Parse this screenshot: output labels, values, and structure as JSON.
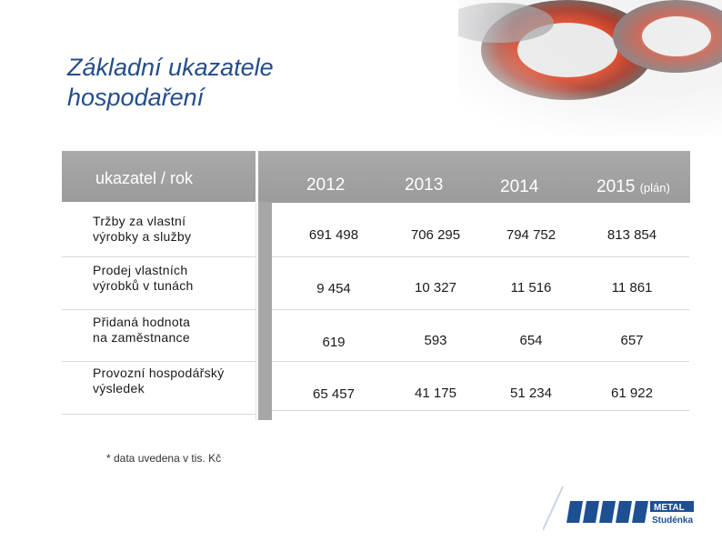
{
  "title": {
    "line1": "Základní ukazatele",
    "line2": "hospodaření"
  },
  "table": {
    "header_label": "ukazatel / rok",
    "years": [
      {
        "year": "2012",
        "suffix": ""
      },
      {
        "year": "2013",
        "suffix": ""
      },
      {
        "year": "2014",
        "suffix": ""
      },
      {
        "year": "2015",
        "suffix": "(plán)"
      }
    ],
    "rows": [
      {
        "label_1": "Tržby za vlastní",
        "label_2": "výrobky a služby",
        "values": [
          "691 498",
          "706 295",
          "794 752",
          "813 854"
        ]
      },
      {
        "label_1": "Prodej vlastních",
        "label_2": "výrobků v tunách",
        "values": [
          "9 454",
          "10 327",
          "11 516",
          "11 861"
        ]
      },
      {
        "label_1": "Přidaná hodnota",
        "label_2": "na zaměstnance",
        "values": [
          "619",
          "593",
          "654",
          "657"
        ]
      },
      {
        "label_1": "Provozní hospodářský",
        "label_2": "výsledek",
        "values": [
          "65 457",
          "41 175",
          "51 234",
          "61 922"
        ]
      }
    ]
  },
  "note": "* data uvedena v tis. Kč",
  "logo": {
    "brand": "METAL",
    "sub": "Studénka"
  },
  "colors": {
    "title": "#244d8a",
    "header_bg": "#a3a3a3",
    "logo_blue": "#1f4f93"
  }
}
